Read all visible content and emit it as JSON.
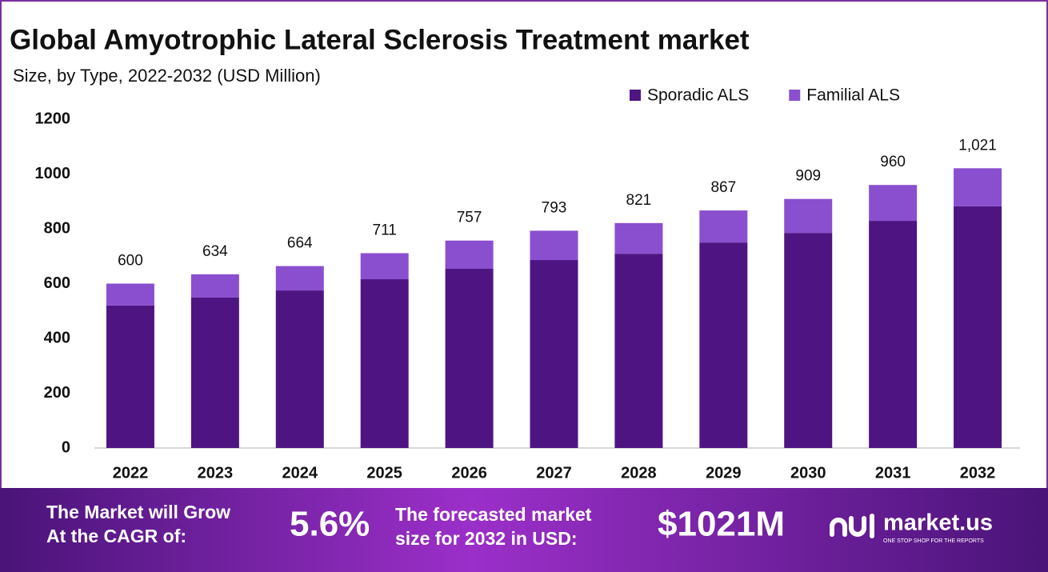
{
  "chart_data": {
    "type": "stacked_bar",
    "title": "Global Amyotrophic Lateral Sclerosis Treatment market",
    "subtitle": "Size, by Type, 2022-2032 (USD Million)",
    "categories": [
      "2022",
      "2023",
      "2024",
      "2025",
      "2026",
      "2027",
      "2028",
      "2029",
      "2030",
      "2031",
      "2032"
    ],
    "series": [
      {
        "name": "Sporadic ALS",
        "color": "#4e1582",
        "values": [
          520,
          549,
          575,
          616,
          654,
          686,
          709,
          750,
          785,
          829,
          882
        ]
      },
      {
        "name": "Familial ALS",
        "color": "#8a4fcf",
        "values": [
          80,
          85,
          89,
          95,
          103,
          107,
          112,
          117,
          124,
          131,
          139
        ]
      }
    ],
    "totals": [
      600,
      634,
      664,
      711,
      757,
      793,
      821,
      867,
      909,
      960,
      {
        "value": 1021,
        "label": "1,021"
      }
    ],
    "ylim": [
      0,
      1200
    ],
    "yticks": [
      0,
      200,
      400,
      600,
      800,
      1000,
      1200
    ],
    "grid": false,
    "legend": "top-right"
  },
  "footer": {
    "cagr_label": [
      "The Market will Grow",
      "At the CAGR of:"
    ],
    "cagr": "5.6%",
    "forecast_label": [
      "The forecasted market",
      "size for 2032 in USD:"
    ],
    "forecast": "$1021M",
    "brand": "market.us",
    "tagline": "ONE STOP SHOP FOR THE REPORTS"
  }
}
